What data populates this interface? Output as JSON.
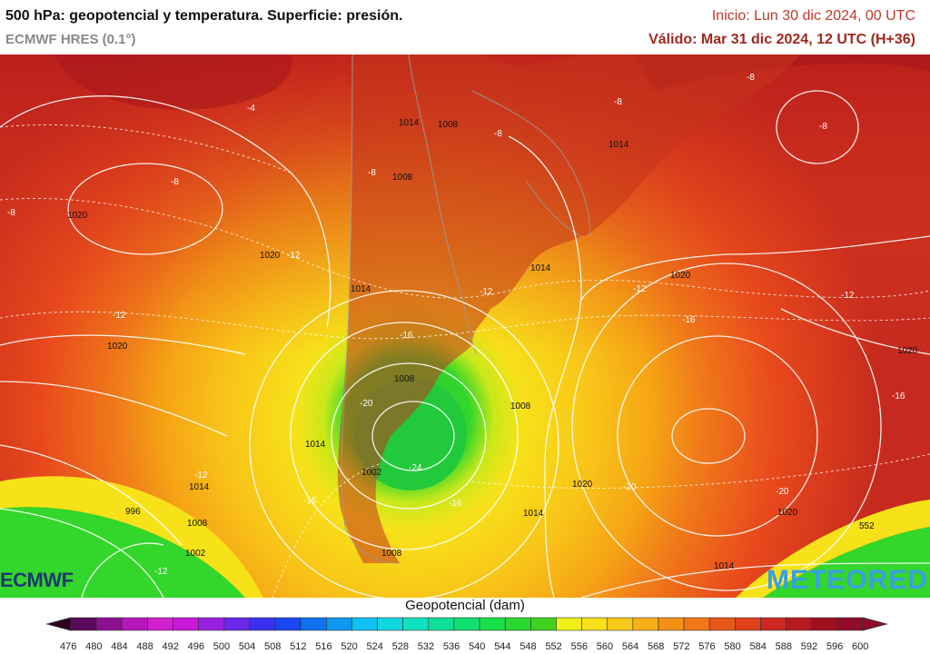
{
  "header": {
    "title": "500 hPa: geopotencial y temperatura. Superficie: presión.",
    "model": "ECMWF HRES (0.1°)",
    "init": "Inicio: Lun 30 dic 2024, 00 UTC",
    "valid": "Válido: Mar 31 dic 2024, 12 UTC (H+36)"
  },
  "map_labels": {
    "temperature": [
      "-4",
      "-8",
      "-8",
      "-8",
      "-8",
      "-8",
      "-8",
      "-8",
      "-12",
      "-12",
      "-12",
      "-12",
      "-12",
      "-12",
      "-16",
      "-16",
      "-16",
      "-16",
      "-16",
      "-20",
      "-20",
      "-20",
      "-24",
      "-12"
    ],
    "isobars": [
      "1020",
      "1020",
      "1014",
      "1008",
      "1014",
      "1008",
      "1014",
      "1014",
      "1020",
      "1020",
      "1020",
      "1008",
      "1008",
      "1014",
      "1002",
      "1020",
      "1014",
      "996",
      "1008",
      "1002",
      "1008",
      "1020",
      "1014",
      "1014",
      "552"
    ]
  },
  "colors": {
    "high": "#b71c1c",
    "warm": "#e8491c",
    "mid": "#f07a1a",
    "orange": "#f5a315",
    "yellow": "#f7e219",
    "green": "#33d62a",
    "contour": "#ffffff",
    "border": "#9a9a9a"
  },
  "logos": {
    "ecmwf": "ECMWF",
    "meteored": "METEORED"
  },
  "legend": {
    "title": "Geopotencial (dam)",
    "ticks": [
      "476",
      "480",
      "484",
      "488",
      "492",
      "496",
      "500",
      "504",
      "508",
      "512",
      "516",
      "520",
      "524",
      "528",
      "532",
      "536",
      "540",
      "544",
      "548",
      "552",
      "556",
      "560",
      "564",
      "568",
      "572",
      "576",
      "580",
      "584",
      "588",
      "592",
      "596",
      "600"
    ],
    "colors": [
      "#2a0020",
      "#5a0a5a",
      "#8c1090",
      "#b418b8",
      "#d020d0",
      "#c818d8",
      "#9a20e0",
      "#6a28e8",
      "#3a30f0",
      "#1848f0",
      "#1070f0",
      "#1098f0",
      "#10c0f0",
      "#10d8e0",
      "#10e0c0",
      "#10e098",
      "#10e070",
      "#18e048",
      "#28d830",
      "#40d020",
      "#f0f018",
      "#f8e018",
      "#f8c818",
      "#f8b018",
      "#f49018",
      "#f07818",
      "#e85818",
      "#e04020",
      "#cc2820",
      "#b81820",
      "#a01020",
      "#900c28"
    ]
  }
}
